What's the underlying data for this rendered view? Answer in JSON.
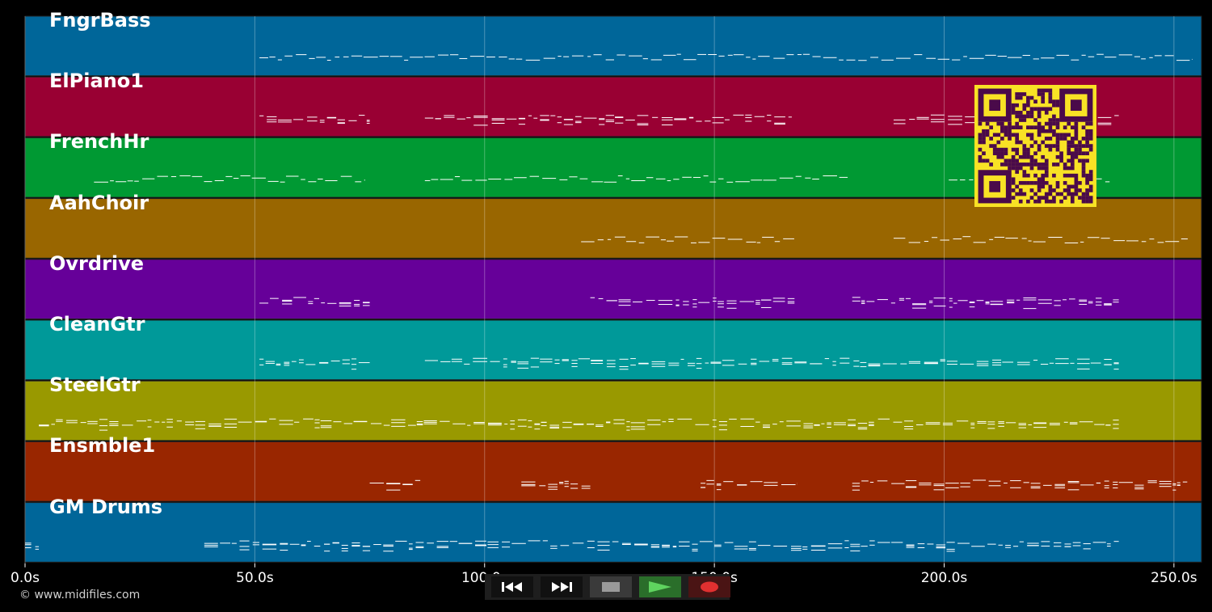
{
  "colors": {
    "background": "#000000",
    "lane_border": "#222222",
    "grid_line": "#ffffff",
    "note": "#ffffff",
    "qr_fg": "#4a0a4a",
    "qr_bg": "#f8e225"
  },
  "tracks": [
    {
      "name": "FngrBass",
      "color": "#006699"
    },
    {
      "name": "ElPiano1",
      "color": "#990033"
    },
    {
      "name": "FrenchHr",
      "color": "#009933"
    },
    {
      "name": "AahChoir",
      "color": "#996600"
    },
    {
      "name": "Ovrdrive",
      "color": "#660099"
    },
    {
      "name": "CleanGtr",
      "color": "#009999"
    },
    {
      "name": "SteelGtr",
      "color": "#999900"
    },
    {
      "name": "Ensmble1",
      "color": "#992600"
    },
    {
      "name": "GM Drums",
      "color": "#006699"
    }
  ],
  "timeline": {
    "start_s": 0,
    "end_s": 256,
    "ticks": [
      {
        "value": 0,
        "label": "0.0s"
      },
      {
        "value": 50,
        "label": "50.0s"
      },
      {
        "value": 100,
        "label": "100.0s"
      },
      {
        "value": 150,
        "label": "150.0s"
      },
      {
        "value": 200,
        "label": "200.0s"
      },
      {
        "value": 250,
        "label": "250.0s"
      }
    ]
  },
  "note_spans": [
    {
      "track": 0,
      "ranges": [
        [
          51,
          254
        ]
      ]
    },
    {
      "track": 1,
      "ranges": [
        [
          51,
          75
        ],
        [
          87,
          167
        ],
        [
          189,
          238
        ]
      ]
    },
    {
      "track": 2,
      "ranges": [
        [
          15,
          74
        ],
        [
          87,
          179
        ],
        [
          201,
          236
        ]
      ]
    },
    {
      "track": 3,
      "ranges": [
        [
          121,
          168
        ],
        [
          189,
          253
        ]
      ]
    },
    {
      "track": 4,
      "ranges": [
        [
          51,
          75
        ],
        [
          123,
          168
        ],
        [
          180,
          238
        ]
      ]
    },
    {
      "track": 5,
      "ranges": [
        [
          51,
          75
        ],
        [
          87,
          238
        ]
      ]
    },
    {
      "track": 6,
      "ranges": [
        [
          3,
          238
        ]
      ]
    },
    {
      "track": 7,
      "ranges": [
        [
          75,
          86
        ],
        [
          108,
          123
        ],
        [
          147,
          168
        ],
        [
          180,
          253
        ]
      ]
    },
    {
      "track": 8,
      "ranges": [
        [
          0,
          3
        ],
        [
          39,
          238
        ]
      ]
    }
  ],
  "copyright": "© www.midifiles.com",
  "transport": [
    {
      "id": "rewind",
      "icon": "rewind-icon",
      "bg": "#111111",
      "fg": "#ffffff"
    },
    {
      "id": "fast-forward",
      "icon": "fast-forward-icon",
      "bg": "#111111",
      "fg": "#ffffff"
    },
    {
      "id": "stop",
      "icon": "stop-icon",
      "bg": "#3a3a3a",
      "fg": "#9a9a9a"
    },
    {
      "id": "play",
      "icon": "play-icon",
      "bg": "#2a6e2a",
      "fg": "#5fd35f"
    },
    {
      "id": "record",
      "icon": "record-icon",
      "bg": "#4a1414",
      "fg": "#e03030"
    }
  ]
}
